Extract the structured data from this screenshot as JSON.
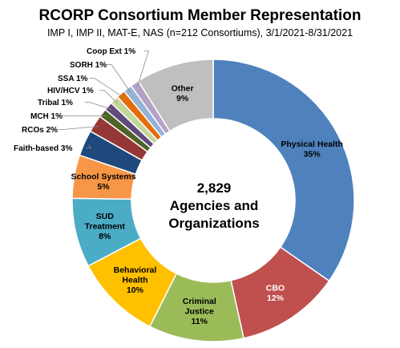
{
  "chart_data": {
    "type": "pie",
    "variant": "donut",
    "title": "RCORP Consortium Member Representation",
    "subtitle": "IMP I, IMP II, MAT-E, NAS (n=212 Consortiums),  3/1/2021-8/31/2021",
    "center_label": [
      "2,829",
      "Agencies and",
      "Organizations"
    ],
    "slices": [
      {
        "label": "Physical Health",
        "value": 35,
        "display": "35%",
        "color": "#4F81BD",
        "label_color": "#000000",
        "label_placement": "inside"
      },
      {
        "label": "CBO",
        "value": 12,
        "display": "12%",
        "color": "#C0504D",
        "label_color": "#ffffff",
        "label_placement": "inside"
      },
      {
        "label": "Criminal Justice",
        "value": 11,
        "display": "11%",
        "color": "#9BBB59",
        "label_color": "#000000",
        "label_placement": "inside"
      },
      {
        "label": "Behavioral Health",
        "value": 10,
        "display": "10%",
        "color": "#FFC000",
        "label_color": "#000000",
        "label_placement": "inside"
      },
      {
        "label": "SUD Treatment",
        "value": 8,
        "display": "8%",
        "color": "#4BACC6",
        "label_color": "#000000",
        "label_placement": "inside"
      },
      {
        "label": "School Systems",
        "value": 5,
        "display": "5%",
        "color": "#F79646",
        "label_color": "#000000",
        "label_placement": "inside"
      },
      {
        "label": "Faith-based",
        "value": 3,
        "display": "3%",
        "color": "#1F497D",
        "label_color": "#000000",
        "label_placement": "outside"
      },
      {
        "label": "RCOs",
        "value": 2,
        "display": "2%",
        "color": "#953735",
        "label_color": "#000000",
        "label_placement": "outside"
      },
      {
        "label": "MCH",
        "value": 1,
        "display": "1%",
        "color": "#4F6228",
        "label_color": "#000000",
        "label_placement": "outside"
      },
      {
        "label": "Tribal",
        "value": 1,
        "display": "1%",
        "color": "#604A7B",
        "label_color": "#000000",
        "label_placement": "outside"
      },
      {
        "label": "HIV/HCV",
        "value": 1,
        "display": "1%",
        "color": "#C3D69B",
        "label_color": "#000000",
        "label_placement": "outside"
      },
      {
        "label": "SSA",
        "value": 1,
        "display": "1%",
        "color": "#E46C0A",
        "label_color": "#000000",
        "label_placement": "outside"
      },
      {
        "label": "SORH",
        "value": 1,
        "display": "1%",
        "color": "#95B3D7",
        "label_color": "#000000",
        "label_placement": "outside"
      },
      {
        "label": "Coop Ext",
        "value": 1,
        "display": "1%",
        "color": "#B3A2C7",
        "label_color": "#000000",
        "label_placement": "outside"
      },
      {
        "label": "Other",
        "value": 9,
        "display": "9%",
        "color": "#BFBFBF",
        "label_color": "#000000",
        "label_placement": "inside"
      }
    ],
    "legend": "none"
  }
}
